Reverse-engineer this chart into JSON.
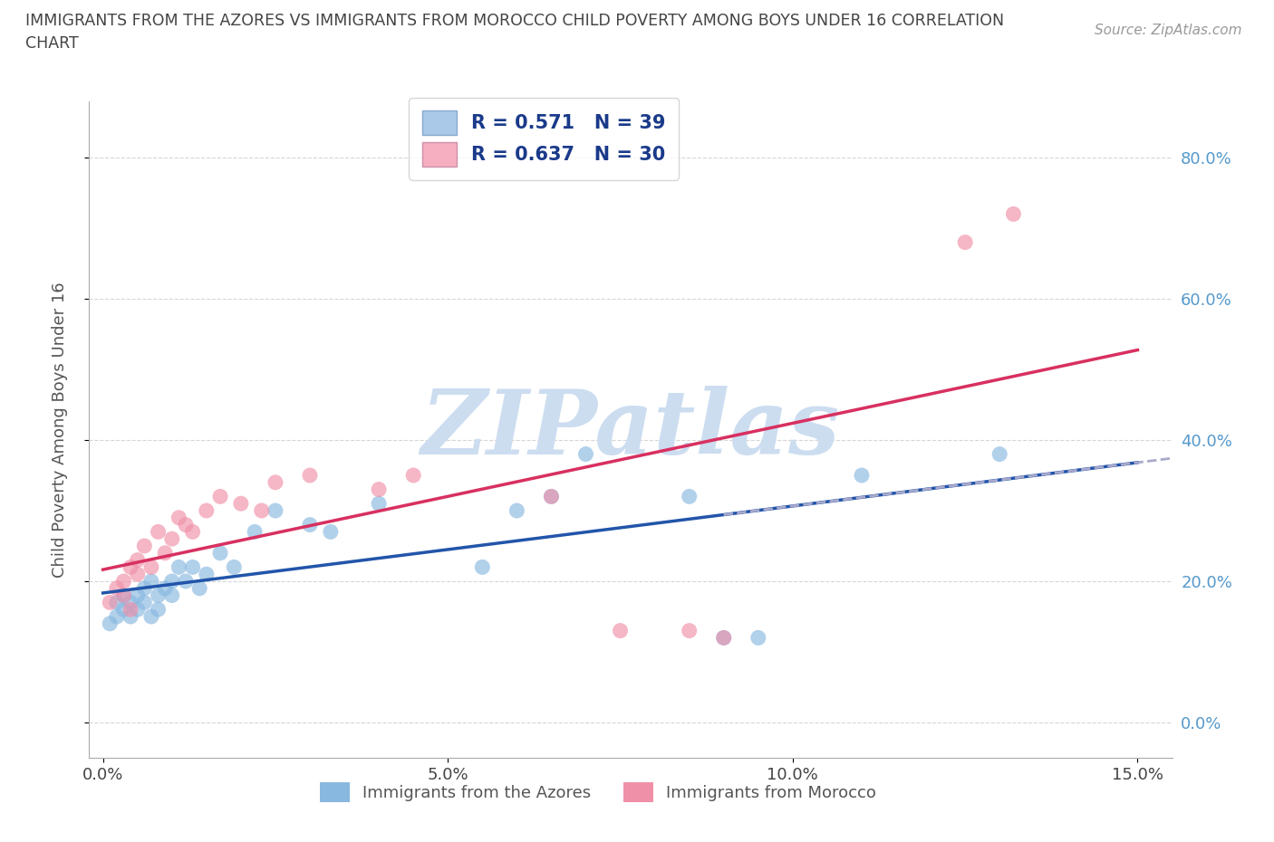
{
  "title_line1": "IMMIGRANTS FROM THE AZORES VS IMMIGRANTS FROM MOROCCO CHILD POVERTY AMONG BOYS UNDER 16 CORRELATION",
  "title_line2": "CHART",
  "source": "Source: ZipAtlas.com",
  "ylabel": "Child Poverty Among Boys Under 16",
  "legend1_label": "R = 0.571   N = 39",
  "legend2_label": "R = 0.637   N = 30",
  "legend1_patch_color": "#aac8e8",
  "legend2_patch_color": "#f5afc0",
  "azores_color": "#88b8e0",
  "morocco_color": "#f090a8",
  "azores_line_color": "#2255aa",
  "morocco_line_color": "#d83060",
  "azores_dash_color": "#aaaacc",
  "watermark": "ZIPatlas",
  "watermark_color": "#ccddf0",
  "background_color": "#ffffff",
  "grid_color": "#cccccc",
  "xlim": [
    -0.002,
    0.155
  ],
  "ylim": [
    -0.05,
    0.88
  ],
  "ytick_vals": [
    0.0,
    0.2,
    0.4,
    0.6,
    0.8
  ],
  "ytick_labels": [
    "0.0%",
    "20.0%",
    "40.0%",
    "60.0%",
    "80.0%"
  ],
  "xtick_vals": [
    0.0,
    0.05,
    0.1,
    0.15
  ],
  "xtick_labels": [
    "0.0%",
    "5.0%",
    "10.0%",
    "15.0%"
  ],
  "azores_x": [
    0.001,
    0.002,
    0.002,
    0.003,
    0.003,
    0.004,
    0.004,
    0.005,
    0.005,
    0.006,
    0.006,
    0.007,
    0.007,
    0.008,
    0.008,
    0.009,
    0.01,
    0.01,
    0.011,
    0.012,
    0.013,
    0.014,
    0.015,
    0.017,
    0.019,
    0.022,
    0.025,
    0.03,
    0.033,
    0.04,
    0.055,
    0.06,
    0.065,
    0.07,
    0.085,
    0.09,
    0.095,
    0.11,
    0.13
  ],
  "azores_y": [
    0.14,
    0.15,
    0.17,
    0.16,
    0.18,
    0.15,
    0.17,
    0.18,
    0.16,
    0.19,
    0.17,
    0.15,
    0.2,
    0.18,
    0.16,
    0.19,
    0.18,
    0.2,
    0.22,
    0.2,
    0.22,
    0.19,
    0.21,
    0.24,
    0.22,
    0.27,
    0.3,
    0.28,
    0.27,
    0.31,
    0.22,
    0.3,
    0.32,
    0.38,
    0.32,
    0.12,
    0.12,
    0.35,
    0.38
  ],
  "morocco_x": [
    0.001,
    0.002,
    0.003,
    0.003,
    0.004,
    0.004,
    0.005,
    0.005,
    0.006,
    0.007,
    0.008,
    0.009,
    0.01,
    0.011,
    0.012,
    0.013,
    0.015,
    0.017,
    0.02,
    0.023,
    0.025,
    0.03,
    0.04,
    0.045,
    0.065,
    0.075,
    0.085,
    0.09,
    0.125,
    0.132
  ],
  "morocco_y": [
    0.17,
    0.19,
    0.18,
    0.2,
    0.16,
    0.22,
    0.21,
    0.23,
    0.25,
    0.22,
    0.27,
    0.24,
    0.26,
    0.29,
    0.28,
    0.27,
    0.3,
    0.32,
    0.31,
    0.3,
    0.34,
    0.35,
    0.33,
    0.35,
    0.32,
    0.13,
    0.13,
    0.12,
    0.68,
    0.72
  ]
}
